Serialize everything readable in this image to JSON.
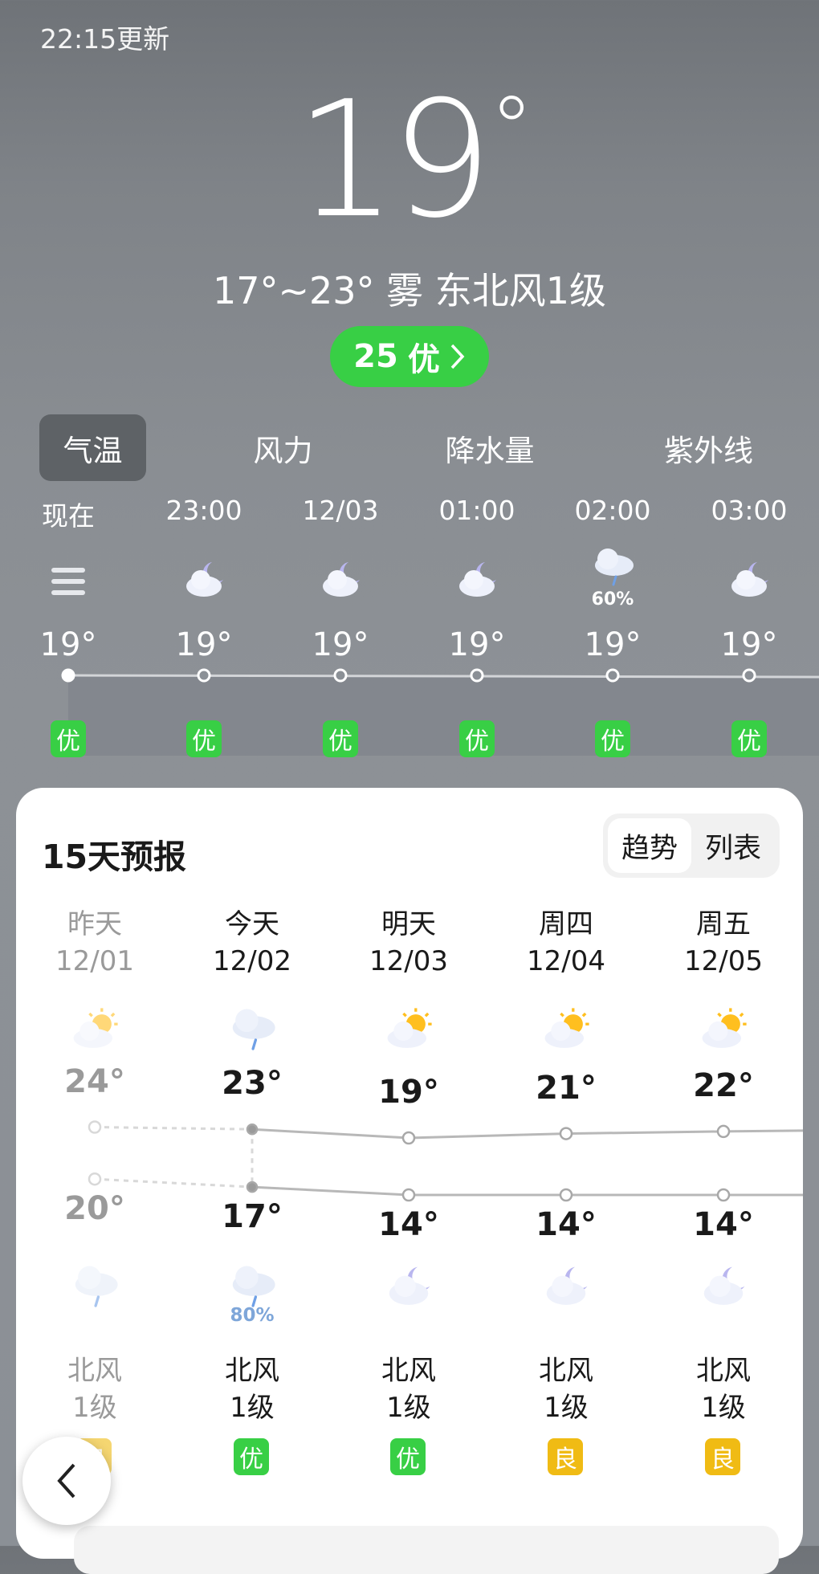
{
  "header": {
    "updated": "22:15更新",
    "current_temp": "19",
    "degree": "°",
    "summary": "17°~23° 雾 东北风1级",
    "aqi_value": "25",
    "aqi_level": "优",
    "aqi_color": "#38cf45"
  },
  "tabs": [
    {
      "label": "气温",
      "active": true
    },
    {
      "label": "风力"
    },
    {
      "label": "降水量"
    },
    {
      "label": "紫外线"
    }
  ],
  "hourly": [
    {
      "time": "现在",
      "icon": "fog-icon",
      "temp": "19°",
      "aqi": "优"
    },
    {
      "time": "23:00",
      "icon": "cloud-moon-icon",
      "temp": "19°",
      "aqi": "优"
    },
    {
      "time": "12/03",
      "icon": "cloud-moon-icon",
      "temp": "19°",
      "aqi": "优"
    },
    {
      "time": "01:00",
      "icon": "cloud-moon-icon",
      "temp": "19°",
      "aqi": "优"
    },
    {
      "time": "02:00",
      "icon": "rain-cloud-icon",
      "precip": "60%",
      "temp": "19°",
      "aqi": "优"
    },
    {
      "time": "03:00",
      "icon": "cloud-moon-icon",
      "temp": "19°",
      "aqi": "优"
    }
  ],
  "forecast": {
    "title": "15天预报",
    "view_toggle": [
      "趋势",
      "列表"
    ],
    "days": [
      {
        "name": "昨天",
        "date": "12/01",
        "day_icon": "sun-cloud-icon",
        "high": 24,
        "low": 20,
        "night_icon": "rain-cloud-icon",
        "wind": "北风",
        "wind_level": "1级",
        "aqi": "良",
        "past": true
      },
      {
        "name": "今天",
        "date": "12/02",
        "day_icon": "rain-cloud-icon",
        "high": 23,
        "low": 17,
        "night_icon": "rain-cloud-icon",
        "precip": "80%",
        "wind": "北风",
        "wind_level": "1级",
        "aqi": "优"
      },
      {
        "name": "明天",
        "date": "12/03",
        "day_icon": "sun-cloud-icon",
        "high": 19,
        "low": 14,
        "night_icon": "cloud-moon-icon",
        "wind": "北风",
        "wind_level": "1级",
        "aqi": "优"
      },
      {
        "name": "周四",
        "date": "12/04",
        "day_icon": "sun-cloud-icon",
        "high": 21,
        "low": 14,
        "night_icon": "cloud-moon-icon",
        "wind": "北风",
        "wind_level": "1级",
        "aqi": "良"
      },
      {
        "name": "周五",
        "date": "12/05",
        "day_icon": "sun-cloud-icon",
        "high": 22,
        "low": 14,
        "night_icon": "cloud-moon-icon",
        "wind": "北风",
        "wind_level": "1级",
        "aqi": "良"
      }
    ]
  },
  "colors": {
    "good": "#38cf45",
    "moderate": "#f0bb14"
  }
}
